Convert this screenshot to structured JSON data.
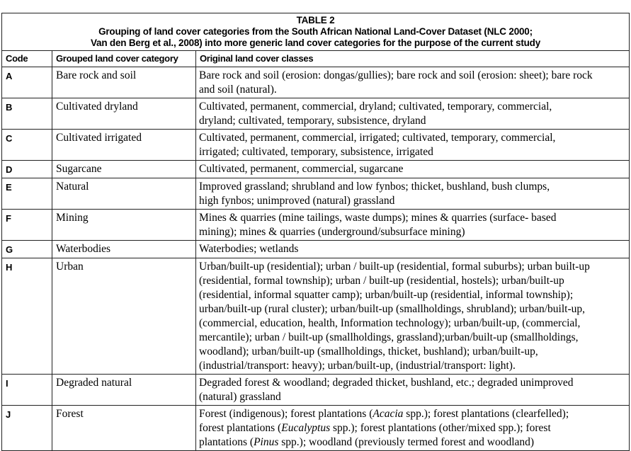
{
  "table": {
    "title": "TABLE 2",
    "caption_lines": [
      "Grouping of land cover categories from the South African National Land-Cover Dataset (NLC 2000;",
      "Van den Berg et al., 2008) into more generic land cover categories for the purpose of the current study"
    ],
    "headers": [
      "Code",
      "Grouped land cover category",
      "Original land cover classes"
    ],
    "rows": [
      {
        "code": "A",
        "category": "Bare rock and soil",
        "lines": [
          [
            {
              "t": "Bare rock and soil (erosion: dongas/gullies); bare rock and soil (erosion: sheet); bare rock"
            }
          ],
          [
            {
              "t": "and soil (natural)."
            }
          ]
        ]
      },
      {
        "code": "B",
        "category": "Cultivated dryland",
        "lines": [
          [
            {
              "t": "Cultivated, permanent, commercial, dryland; cultivated, temporary, commercial,"
            }
          ],
          [
            {
              "t": "dryland; cultivated, temporary, subsistence, dryland"
            }
          ]
        ]
      },
      {
        "code": "C",
        "category": "Cultivated irrigated",
        "lines": [
          [
            {
              "t": "Cultivated, permanent, commercial, irrigated; cultivated, temporary, commercial,"
            }
          ],
          [
            {
              "t": "irrigated; cultivated, temporary, subsistence, irrigated"
            }
          ]
        ]
      },
      {
        "code": "D",
        "category": "Sugarcane",
        "lines": [
          [
            {
              "t": "Cultivated, permanent, commercial, sugarcane"
            }
          ]
        ]
      },
      {
        "code": "E",
        "category": "Natural",
        "lines": [
          [
            {
              "t": "Improved grassland; shrubland and low fynbos; thicket, bushland, bush clumps,"
            }
          ],
          [
            {
              "t": "high fynbos; unimproved (natural) grassland"
            }
          ]
        ]
      },
      {
        "code": "F",
        "category": "Mining",
        "lines": [
          [
            {
              "t": "Mines & quarries (mine tailings, waste dumps); mines & quarries (surface- based"
            }
          ],
          [
            {
              "t": "mining); mines & quarries (underground/subsurface mining)"
            }
          ]
        ]
      },
      {
        "code": "G",
        "category": "Waterbodies",
        "lines": [
          [
            {
              "t": "Waterbodies; wetlands"
            }
          ]
        ]
      },
      {
        "code": "H",
        "category": "Urban",
        "lines": [
          [
            {
              "t": "Urban/built-up (residential); urban / built-up (residential, formal suburbs); urban built-up"
            }
          ],
          [
            {
              "t": "(residential, formal township); urban / built-up (residential, hostels); urban/built-up"
            }
          ],
          [
            {
              "t": "(residential, informal squatter camp); urban/built-up (residential, informal township);"
            }
          ],
          [
            {
              "t": "urban/built-up (rural cluster); urban/built-up (smallholdings, shrubland); urban/built-up,"
            }
          ],
          [
            {
              "t": "(commercial, education, health, Information technology); urban/built-up, (commercial,"
            }
          ],
          [
            {
              "t": "mercantile); urban / built-up (smallholdings, grassland);urban/built-up (smallholdings,"
            }
          ],
          [
            {
              "t": "woodland); urban/built-up (smallholdings, thicket, bushland); urban/built-up,"
            }
          ],
          [
            {
              "t": "(industrial/transport: heavy); urban/built-up, (industrial/transport: light)."
            }
          ]
        ]
      },
      {
        "code": "I",
        "category": "Degraded natural",
        "lines": [
          [
            {
              "t": "Degraded forest & woodland; degraded thicket, bushland, etc.; degraded unimproved"
            }
          ],
          [
            {
              "t": "(natural) grassland"
            }
          ]
        ]
      },
      {
        "code": "J",
        "category": "Forest",
        "lines": [
          [
            {
              "t": "Forest (indigenous); forest plantations ("
            },
            {
              "t": "Acacia",
              "i": true
            },
            {
              "t": " spp.); forest plantations (clearfelled);"
            }
          ],
          [
            {
              "t": "forest plantations ("
            },
            {
              "t": "Eucalyptus",
              "i": true
            },
            {
              "t": " spp.); forest plantations (other/mixed spp.); forest"
            }
          ],
          [
            {
              "t": "plantations ("
            },
            {
              "t": "Pinus",
              "i": true
            },
            {
              "t": " spp.); woodland (previously termed forest and woodland)"
            }
          ]
        ]
      }
    ]
  }
}
